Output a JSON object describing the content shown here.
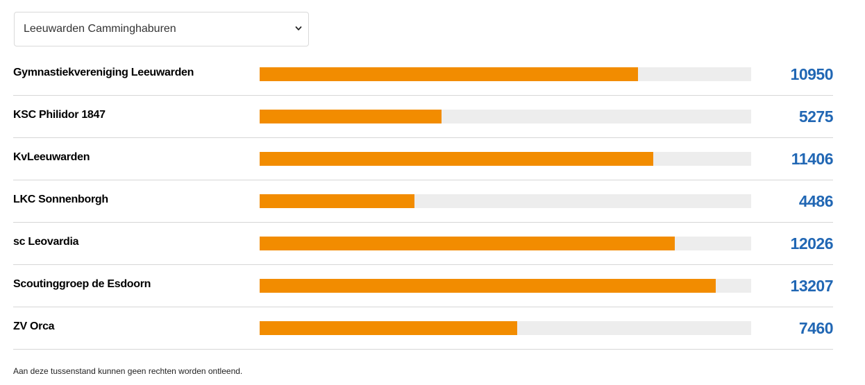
{
  "select": {
    "value": "Leeuwarden Camminghaburen",
    "icon": "chevron-down-icon"
  },
  "colors": {
    "bar_fill": "#f28c00",
    "bar_track": "#ededed",
    "value_text": "#2167b4"
  },
  "max_value": 14230,
  "rows": [
    {
      "name": "Gymnastiekvereniging Leeuwarden",
      "value": "10950"
    },
    {
      "name": "KSC Philidor 1847",
      "value": "5275"
    },
    {
      "name": "KvLeeuwarden",
      "value": "11406"
    },
    {
      "name": "LKC Sonnenborgh",
      "value": "4486"
    },
    {
      "name": "sc Leovardia",
      "value": "12026"
    },
    {
      "name": "Scoutinggroep de Esdoorn",
      "value": "13207"
    },
    {
      "name": "ZV Orca",
      "value": "7460"
    }
  ],
  "disclaimer": "Aan deze tussenstand kunnen geen rechten worden ontleend."
}
